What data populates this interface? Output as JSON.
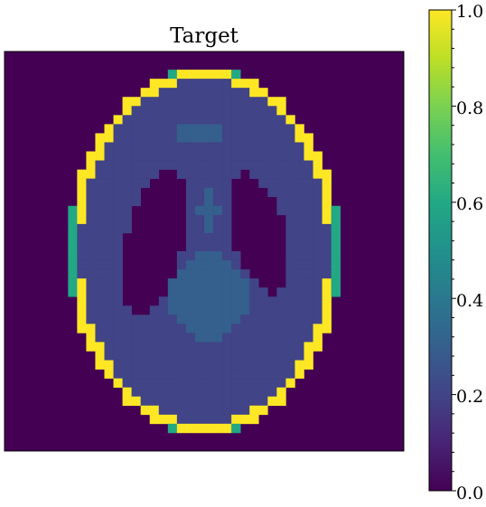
{
  "title": "Target",
  "colorbar": {
    "colormap": "viridis",
    "tick_labels": [
      "1.0",
      "0.8",
      "0.6",
      "0.4",
      "0.2",
      "0.0"
    ],
    "range": [
      0.0,
      1.0
    ]
  },
  "phantom": {
    "grid": "44x44 pixel grid (downsampled Shepp–Logan phantom)",
    "levels": {
      "background": 0.0,
      "skull": 1.0,
      "skull_edge": 0.6,
      "brain": 0.2,
      "ventricles": 0.0,
      "lower_blob": 0.3,
      "small_features": 0.3
    },
    "colors": {
      "background": "#440154",
      "skull": "#fde725",
      "brain": "#3b528b",
      "lower_blob": "#31688e"
    }
  }
}
